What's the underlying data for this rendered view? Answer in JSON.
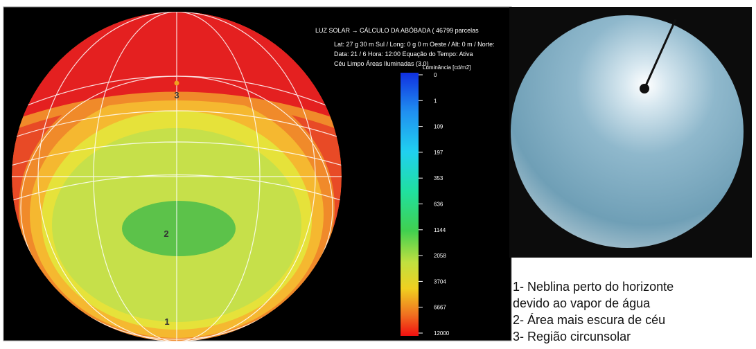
{
  "header": {
    "lines": [
      "LUZ SOLAR → CÁLCULO DA ABÓBADA ( 46799 parcelas",
      "Lat: 27 g 30 m Sul  /  Long: 0 g 0 m Oeste  /  Alt: 0 m  /  Norte:",
      "Data: 21 / 6  Hora: 12:00   Equação do Tempo: Ativa",
      "Céu Limpo     Áreas Iluminadas (3.0)"
    ]
  },
  "legend": {
    "title": "Luminância [cd/m2]",
    "labels": [
      "0",
      "1",
      "109",
      "197",
      "353",
      "636",
      "1144",
      "2058",
      "3704",
      "6667",
      "12000"
    ]
  },
  "dome": {
    "region_labels": [
      "1",
      "2",
      "3"
    ]
  },
  "notes": [
    "1- Neblina perto do horizonte",
    "devido ao vapor de água",
    "2- Área mais escura de céu",
    "3- Região circunsolar"
  ]
}
